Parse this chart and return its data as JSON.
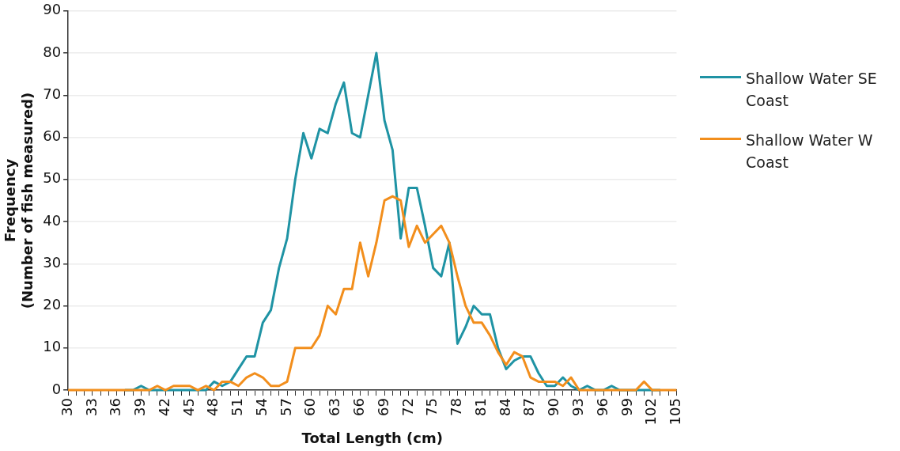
{
  "chart_data": {
    "type": "line",
    "xlabel": "Total Length (cm)",
    "ylabel": "Frequency\n(Number of fish measured)",
    "categories": [
      "30",
      null,
      null,
      "33",
      null,
      null,
      "36",
      null,
      null,
      "39",
      null,
      null,
      "42",
      null,
      null,
      "45",
      null,
      null,
      "48",
      null,
      null,
      "51",
      null,
      null,
      "54",
      null,
      null,
      "57",
      null,
      null,
      "60",
      null,
      null,
      "63",
      null,
      null,
      "66",
      null,
      null,
      "69",
      null,
      null,
      "72",
      null,
      null,
      "75",
      null,
      null,
      "78",
      null,
      null,
      "81",
      null,
      null,
      "84",
      null,
      null,
      "87",
      null,
      null,
      "90",
      null,
      null,
      "93",
      null,
      null,
      "96",
      null,
      null,
      "99",
      null,
      null,
      "102",
      null,
      null,
      "105"
    ],
    "series": [
      {
        "name": "Shallow Water SE Coast",
        "color": "#1f93a4",
        "values": [
          null,
          null,
          null,
          null,
          null,
          null,
          null,
          0,
          0,
          1,
          0,
          0,
          0,
          0,
          0,
          0,
          0,
          0,
          2,
          1,
          2,
          5,
          8,
          8,
          16,
          19,
          29,
          36,
          50,
          61,
          55,
          62,
          61,
          68,
          73,
          61,
          60,
          70,
          80,
          64,
          57,
          36,
          48,
          48,
          39,
          29,
          27,
          35,
          11,
          15,
          20,
          18,
          18,
          10,
          5,
          7,
          8,
          8,
          4,
          1,
          1,
          3,
          1,
          0,
          1,
          0,
          0,
          1,
          0,
          0,
          0,
          0,
          0,
          0,
          null,
          null
        ]
      },
      {
        "name": "Shallow Water W Coast",
        "color": "#f28e1c",
        "values": [
          0,
          0,
          0,
          0,
          0,
          0,
          0,
          0,
          0,
          0,
          0,
          1,
          0,
          1,
          1,
          1,
          0,
          1,
          0,
          2,
          2,
          1,
          3,
          4,
          3,
          1,
          1,
          2,
          10,
          10,
          10,
          13,
          20,
          18,
          24,
          24,
          35,
          27,
          35,
          45,
          46,
          45,
          34,
          39,
          35,
          37,
          39,
          35,
          27,
          20,
          16,
          16,
          13,
          9,
          6,
          9,
          8,
          3,
          2,
          2,
          2,
          1,
          3,
          0,
          0,
          0,
          0,
          0,
          0,
          0,
          0,
          2,
          0,
          0,
          0,
          0
        ]
      }
    ],
    "ylim": [
      0,
      90
    ],
    "yticks": [
      0,
      10,
      20,
      30,
      40,
      50,
      60,
      70,
      80,
      90
    ],
    "grid": "y",
    "legend": "right",
    "marker": "none",
    "line_style": "solid"
  }
}
